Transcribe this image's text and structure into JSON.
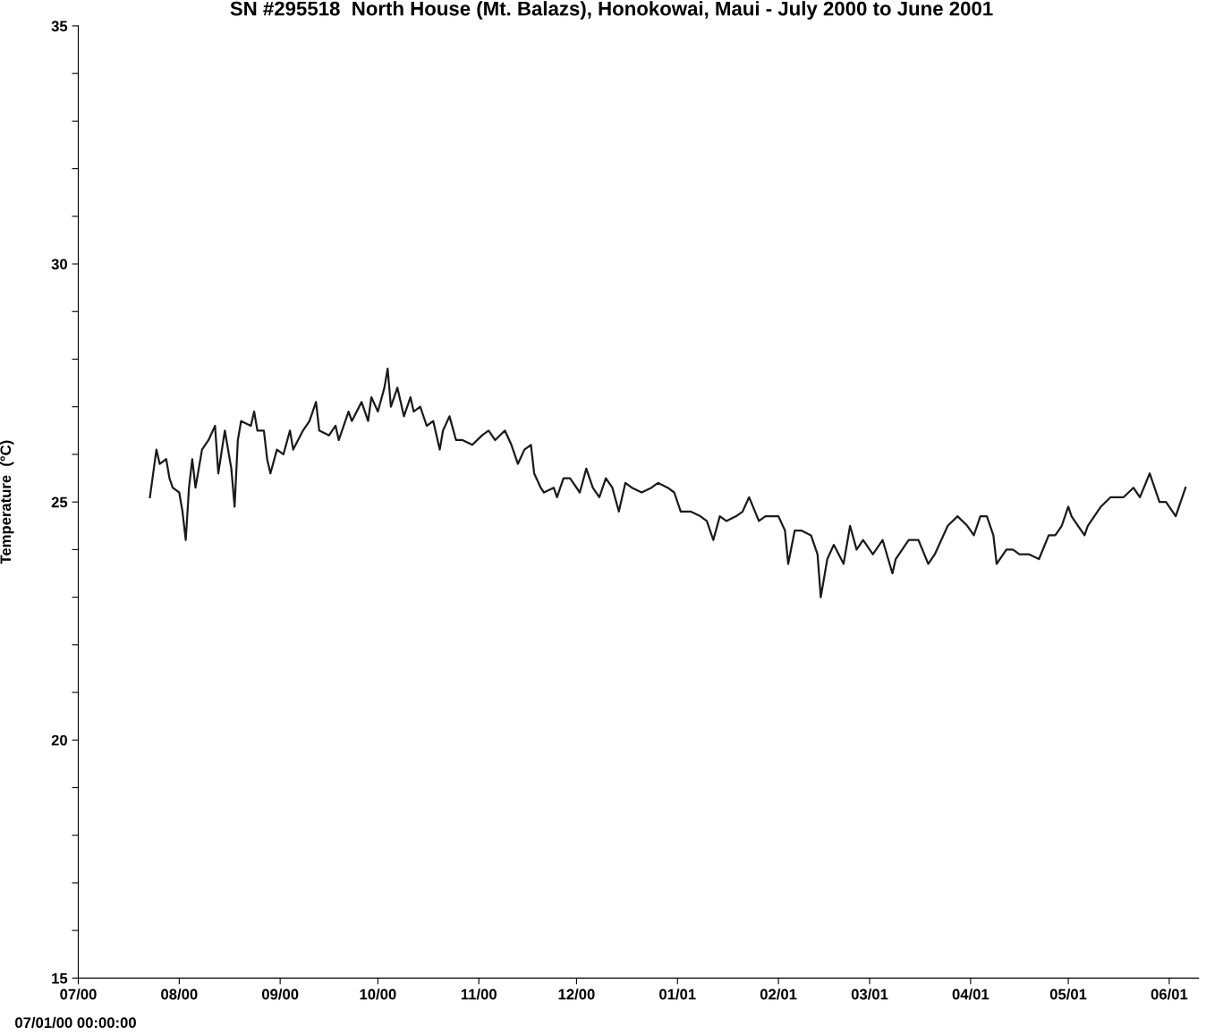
{
  "chart_data": {
    "type": "line",
    "title": "SN #295518  North House (Mt. Balazs), Honokowai, Maui - July 2000 to June 2001",
    "ylabel": "Temperature  (°C)",
    "annotations": [
      "07/01/00 00:00:00"
    ],
    "xlim": [
      "2000-07-01",
      "2001-06-10"
    ],
    "xticks": [
      {
        "value": "2000-07-01",
        "label": "07/00"
      },
      {
        "value": "2000-08-01",
        "label": "08/00"
      },
      {
        "value": "2000-09-01",
        "label": "09/00"
      },
      {
        "value": "2000-10-01",
        "label": "10/00"
      },
      {
        "value": "2000-11-01",
        "label": "11/00"
      },
      {
        "value": "2000-12-01",
        "label": "12/00"
      },
      {
        "value": "2001-01-01",
        "label": "01/01"
      },
      {
        "value": "2001-02-01",
        "label": "02/01"
      },
      {
        "value": "2001-03-01",
        "label": "03/01"
      },
      {
        "value": "2001-04-01",
        "label": "04/01"
      },
      {
        "value": "2001-05-01",
        "label": "05/01"
      },
      {
        "value": "2001-06-01",
        "label": "06/01"
      }
    ],
    "ylim": [
      15,
      35
    ],
    "yticks": [
      15,
      {
        "value": 16,
        "label": null
      },
      {
        "value": 17,
        "label": null
      },
      {
        "value": 18,
        "label": null
      },
      {
        "value": 19,
        "label": null
      },
      20,
      {
        "value": 21,
        "label": null
      },
      {
        "value": 22,
        "label": null
      },
      {
        "value": 23,
        "label": null
      },
      {
        "value": 24,
        "label": null
      },
      25,
      {
        "value": 26,
        "label": null
      },
      {
        "value": 27,
        "label": null
      },
      {
        "value": 28,
        "label": null
      },
      {
        "value": 29,
        "label": null
      },
      30,
      {
        "value": 31,
        "label": null
      },
      {
        "value": 32,
        "label": null
      },
      {
        "value": 33,
        "label": null
      },
      {
        "value": 34,
        "label": null
      },
      35
    ],
    "grid": false,
    "marker": "none",
    "line_style": "solid",
    "series": [
      {
        "color": "#1a1a1a",
        "x": [
          "2000-07-23",
          "2000-07-25",
          "2000-07-26",
          "2000-07-28",
          "2000-07-29",
          "2000-07-30",
          "2000-08-01",
          "2000-08-02",
          "2000-08-03",
          "2000-08-04",
          "2000-08-05",
          "2000-08-06",
          "2000-08-08",
          "2000-08-10",
          "2000-08-12",
          "2000-08-13",
          "2000-08-15",
          "2000-08-17",
          "2000-08-18",
          "2000-08-19",
          "2000-08-20",
          "2000-08-23",
          "2000-08-24",
          "2000-08-25",
          "2000-08-27",
          "2000-08-28",
          "2000-08-29",
          "2000-08-31",
          "2000-09-02",
          "2000-09-04",
          "2000-09-05",
          "2000-09-08",
          "2000-09-10",
          "2000-09-12",
          "2000-09-13",
          "2000-09-16",
          "2000-09-18",
          "2000-09-19",
          "2000-09-22",
          "2000-09-23",
          "2000-09-26",
          "2000-09-28",
          "2000-09-29",
          "2000-10-01",
          "2000-10-03",
          "2000-10-04",
          "2000-10-05",
          "2000-10-07",
          "2000-10-09",
          "2000-10-11",
          "2000-10-12",
          "2000-10-14",
          "2000-10-16",
          "2000-10-18",
          "2000-10-20",
          "2000-10-21",
          "2000-10-23",
          "2000-10-25",
          "2000-10-27",
          "2000-10-30",
          "2000-11-02",
          "2000-11-04",
          "2000-11-06",
          "2000-11-09",
          "2000-11-11",
          "2000-11-13",
          "2000-11-15",
          "2000-11-17",
          "2000-11-18",
          "2000-11-20",
          "2000-11-21",
          "2000-11-24",
          "2000-11-25",
          "2000-11-27",
          "2000-11-29",
          "2000-12-02",
          "2000-12-04",
          "2000-12-06",
          "2000-12-08",
          "2000-12-10",
          "2000-12-12",
          "2000-12-14",
          "2000-12-16",
          "2000-12-18",
          "2000-12-21",
          "2000-12-24",
          "2000-12-26",
          "2000-12-29",
          "2000-12-31",
          "2001-01-02",
          "2001-01-05",
          "2001-01-08",
          "2001-01-10",
          "2001-01-12",
          "2001-01-14",
          "2001-01-16",
          "2001-01-19",
          "2001-01-21",
          "2001-01-23",
          "2001-01-26",
          "2001-01-28",
          "2001-01-30",
          "2001-02-01",
          "2001-02-03",
          "2001-02-04",
          "2001-02-06",
          "2001-02-08",
          "2001-02-11",
          "2001-02-13",
          "2001-02-14",
          "2001-02-16",
          "2001-02-18",
          "2001-02-21",
          "2001-02-23",
          "2001-02-25",
          "2001-02-27",
          "2001-03-02",
          "2001-03-05",
          "2001-03-08",
          "2001-03-09",
          "2001-03-11",
          "2001-03-13",
          "2001-03-16",
          "2001-03-19",
          "2001-03-21",
          "2001-03-23",
          "2001-03-25",
          "2001-03-28",
          "2001-03-31",
          "2001-04-02",
          "2001-04-04",
          "2001-04-06",
          "2001-04-08",
          "2001-04-09",
          "2001-04-12",
          "2001-04-14",
          "2001-04-16",
          "2001-04-19",
          "2001-04-22",
          "2001-04-25",
          "2001-04-27",
          "2001-04-29",
          "2001-05-01",
          "2001-05-02",
          "2001-05-04",
          "2001-05-06",
          "2001-05-07",
          "2001-05-09",
          "2001-05-11",
          "2001-05-14",
          "2001-05-16",
          "2001-05-18",
          "2001-05-21",
          "2001-05-23",
          "2001-05-26",
          "2001-05-29",
          "2001-05-31",
          "2001-06-03",
          "2001-06-04",
          "2001-06-06"
        ],
        "values": [
          25.1,
          26.1,
          25.8,
          25.9,
          25.5,
          25.3,
          25.2,
          24.8,
          24.2,
          25.3,
          25.9,
          25.3,
          26.1,
          26.3,
          26.6,
          25.6,
          26.5,
          25.7,
          24.9,
          26.3,
          26.7,
          26.6,
          26.9,
          26.5,
          26.5,
          25.9,
          25.6,
          26.1,
          26.0,
          26.5,
          26.1,
          26.5,
          26.7,
          27.1,
          26.5,
          26.4,
          26.6,
          26.3,
          26.9,
          26.7,
          27.1,
          26.7,
          27.2,
          26.9,
          27.4,
          27.8,
          27.0,
          27.4,
          26.8,
          27.2,
          26.9,
          27.0,
          26.6,
          26.7,
          26.1,
          26.5,
          26.8,
          26.3,
          26.3,
          26.2,
          26.4,
          26.5,
          26.3,
          26.5,
          26.2,
          25.8,
          26.1,
          26.2,
          25.6,
          25.3,
          25.2,
          25.3,
          25.1,
          25.5,
          25.5,
          25.2,
          25.7,
          25.3,
          25.1,
          25.5,
          25.3,
          24.8,
          25.4,
          25.3,
          25.2,
          25.3,
          25.4,
          25.3,
          25.2,
          24.8,
          24.8,
          24.7,
          24.6,
          24.2,
          24.7,
          24.6,
          24.7,
          24.8,
          25.1,
          24.6,
          24.7,
          24.7,
          24.7,
          24.4,
          23.7,
          24.4,
          24.4,
          24.3,
          23.9,
          23.0,
          23.8,
          24.1,
          23.7,
          24.5,
          24.0,
          24.2,
          23.9,
          24.2,
          23.5,
          23.8,
          24.0,
          24.2,
          24.2,
          23.7,
          23.9,
          24.2,
          24.5,
          24.7,
          24.5,
          24.3,
          24.7,
          24.7,
          24.3,
          23.7,
          24.0,
          24.0,
          23.9,
          23.9,
          23.8,
          24.3,
          24.3,
          24.5,
          24.9,
          24.7,
          24.5,
          24.3,
          24.5,
          24.7,
          24.9,
          25.1,
          25.1,
          25.1,
          25.3,
          25.1,
          25.6,
          25.0,
          25.0,
          24.7,
          24.9,
          25.3
        ]
      }
    ]
  }
}
